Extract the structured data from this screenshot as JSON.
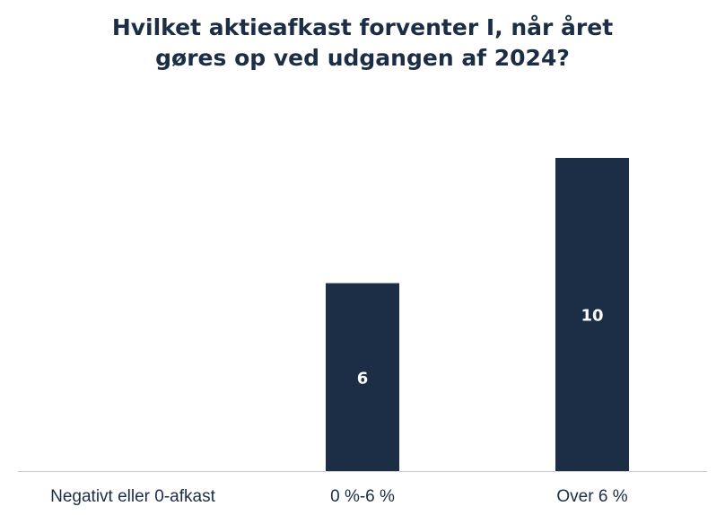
{
  "chart_data": {
    "type": "bar",
    "title_lines": [
      "Hvilket aktieafkast forventer I, når året",
      "gøres op ved udgangen af 2024?"
    ],
    "categories": [
      "Negativt eller 0-afkast",
      "0 %-6 %",
      "Over 6 %"
    ],
    "values": [
      0,
      6,
      10
    ],
    "data_labels": [
      "",
      "6",
      "10"
    ],
    "ylim": [
      0,
      10
    ],
    "grid": false,
    "bar_color": "#1b2e45",
    "axis_color": "#cccccc"
  }
}
